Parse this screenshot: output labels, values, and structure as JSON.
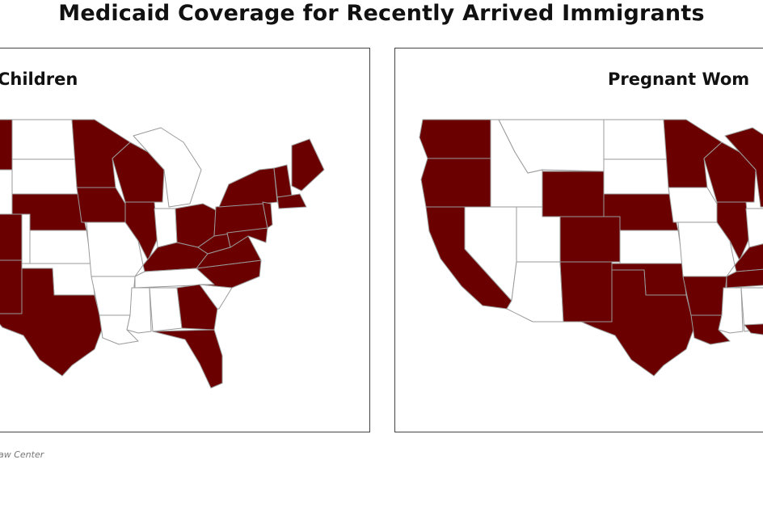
{
  "title": "Medicaid Coverage for Recently Arrived Immigrants",
  "colors": {
    "covered": "#6b0000",
    "not_covered": "#ffffff",
    "border": "#9a9a9a"
  },
  "panels": [
    {
      "id": "children",
      "title": "Children"
    },
    {
      "id": "pregnant",
      "title": "Pregnant Wom"
    }
  ],
  "source": "aw Center"
}
